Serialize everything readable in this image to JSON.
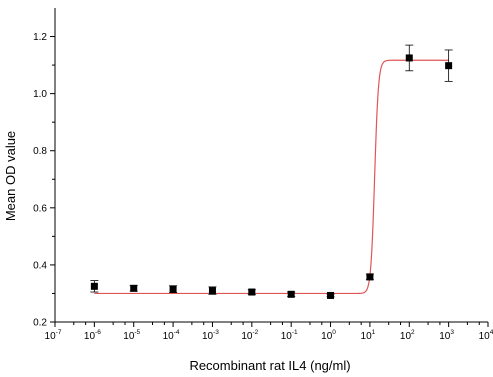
{
  "chart_data": {
    "type": "scatter",
    "xlabel": "Recombinant rat IL4 (ng/ml)",
    "ylabel": "Mean OD value",
    "x_scale": "log10",
    "xlim": [
      1e-07,
      10000.0
    ],
    "ylim": [
      0.2,
      1.3
    ],
    "x_tick_exponents": [
      -7,
      -6,
      -5,
      -4,
      -3,
      -2,
      -1,
      0,
      1,
      2,
      3,
      4
    ],
    "x_tick_base": "10",
    "y_ticks": [
      0.2,
      0.4,
      0.6,
      0.8,
      1.0,
      1.2
    ],
    "y_tick_labels": [
      "0.2",
      "0.4",
      "0.6",
      "0.8",
      "1.0",
      "1.2"
    ],
    "grid": false,
    "series": [
      {
        "marker": "square",
        "color": "#000000",
        "x": [
          1e-06,
          1e-05,
          0.0001,
          0.001,
          0.01,
          0.1,
          1,
          10,
          100,
          1000
        ],
        "y": [
          0.325,
          0.318,
          0.315,
          0.31,
          0.305,
          0.297,
          0.293,
          0.358,
          1.125,
          1.098
        ],
        "error": [
          0.02,
          0.01,
          0.012,
          0.013,
          0.008,
          0.008,
          0.005,
          0.01,
          0.045,
          0.055
        ]
      }
    ],
    "fit": {
      "type": "sigmoid",
      "color": "#e05555",
      "bottom": 0.3,
      "top": 1.117,
      "log_x0": 1.12,
      "slope": 9,
      "x_range": [
        1e-06,
        1000
      ]
    }
  }
}
